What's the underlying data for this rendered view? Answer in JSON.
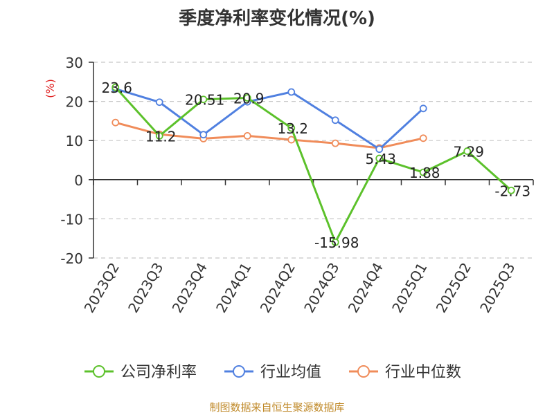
{
  "chart_data": {
    "type": "line",
    "title": "季度净利率变化情况(%)",
    "ylabel": "(%)",
    "categories": [
      "2023Q2",
      "2023Q3",
      "2023Q4",
      "2024Q1",
      "2024Q2",
      "2024Q3",
      "2024Q4",
      "2025Q1",
      "2025Q2",
      "2025Q3"
    ],
    "yticks": [
      30,
      20,
      10,
      0,
      -10,
      -20
    ],
    "ylim": [
      -20,
      30
    ],
    "grid": true,
    "legend_position": "bottom",
    "series": [
      {
        "name": "公司净利率",
        "color": "#5cc12b",
        "values": [
          23.6,
          11.2,
          20.51,
          20.9,
          13.2,
          -15.98,
          5.43,
          1.88,
          7.29,
          -2.73
        ],
        "labels": [
          "23.6",
          "11.2",
          "20.51",
          "20.9",
          "13.2",
          "-15.98",
          "5.43",
          "1.88",
          "7.29",
          "-2.73"
        ]
      },
      {
        "name": "行业均值",
        "color": "#5080e0",
        "values": [
          23.2,
          19.8,
          11.5,
          19.9,
          22.4,
          15.2,
          7.8,
          18.2,
          null,
          null
        ]
      },
      {
        "name": "行业中位数",
        "color": "#f08c5a",
        "values": [
          14.6,
          11.6,
          10.5,
          11.2,
          10.2,
          9.3,
          8.1,
          10.6,
          null,
          null
        ]
      }
    ]
  },
  "source": "制图数据来自恒生聚源数据库"
}
